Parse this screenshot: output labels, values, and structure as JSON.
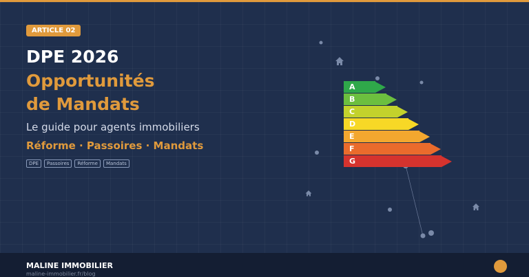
{
  "badge": "ARTICLE 02",
  "title_line1": "DPE 2026",
  "title_line2": "Opportunités",
  "title_line3": "de Mandats",
  "subtitle": "Le guide pour agents immobiliers",
  "keywords": "Réforme · Passoires · Mandats",
  "tags": [
    "DPE",
    "Passoires",
    "Réforme",
    "Mandats"
  ],
  "dpe_scale": [
    {
      "label": "A",
      "color": "#2fa84a"
    },
    {
      "label": "B",
      "color": "#6cbf3f"
    },
    {
      "label": "C",
      "color": "#c3d22c"
    },
    {
      "label": "D",
      "color": "#f7d826"
    },
    {
      "label": "E",
      "color": "#f3a72f"
    },
    {
      "label": "F",
      "color": "#ea6b2c"
    },
    {
      "label": "G",
      "color": "#d5332e"
    }
  ],
  "footer": {
    "brand": "MALINE IMMOBILIER",
    "url": "maline-immobilier.fr/blog"
  },
  "colors": {
    "background": "#1f2f4d",
    "accent": "#e09a3c",
    "footer": "#141e33"
  }
}
